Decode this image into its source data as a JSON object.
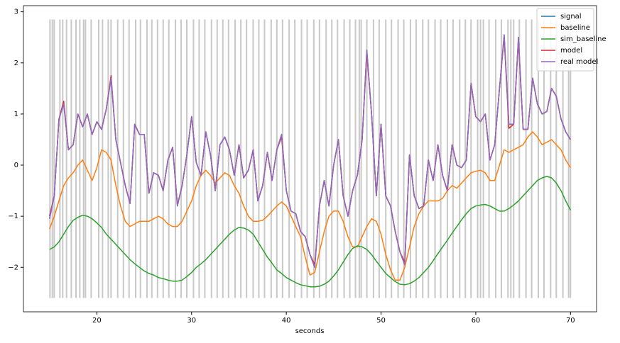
{
  "chart_data": {
    "type": "line",
    "xlabel": "seconds",
    "xlim": [
      12.25,
      72.75
    ],
    "ylim": [
      -2.87,
      3.12
    ],
    "xticks": [
      20,
      30,
      40,
      50,
      60,
      70
    ],
    "yticks": [
      {
        "value": -2,
        "label": "−2"
      },
      {
        "value": -1,
        "label": "−1"
      },
      0,
      1,
      2,
      3
    ],
    "legend": "upper right",
    "events": [
      15.05,
      15.3,
      15.5,
      16.1,
      16.4,
      16.8,
      17.3,
      17.8,
      18.2,
      18.6,
      18.8,
      19.4,
      20.2,
      20.6,
      21.2,
      21.5,
      22.2,
      22.8,
      23.4,
      24.1,
      24.6,
      25.3,
      25.8,
      26.4,
      27.0,
      27.6,
      28.3,
      28.9,
      29.5,
      30.2,
      30.8,
      31.4,
      32.1,
      32.7,
      33.3,
      33.9,
      34.6,
      35.2,
      35.8,
      36.5,
      37.1,
      37.7,
      38.4,
      39.0,
      39.6,
      40.3,
      40.9,
      41.6,
      42.2,
      42.9,
      43.5,
      44.2,
      44.8,
      45.4,
      46.1,
      46.7,
      47.3,
      47.7,
      47.9,
      48.5,
      49.2,
      49.8,
      50.5,
      51.1,
      51.8,
      52.4,
      53.1,
      53.7,
      54.4,
      55.0,
      55.7,
      56.3,
      57.0,
      57.6,
      58.3,
      58.9,
      59.5,
      60.2,
      60.5,
      60.8,
      61.4,
      62.1,
      62.7,
      63.4,
      63.7,
      64.0,
      64.6,
      65.3,
      65.9,
      66.6,
      67.2,
      67.9,
      68.5,
      69.2,
      69.8,
      70.0
    ],
    "event_span": [
      -2.6,
      2.85
    ],
    "event_color": "#c8c8c8",
    "x": [
      15,
      15.5,
      16,
      16.5,
      17,
      17.5,
      18,
      18.5,
      19,
      19.5,
      20,
      20.5,
      21,
      21.5,
      22,
      22.5,
      23,
      23.5,
      24,
      24.5,
      25,
      25.5,
      26,
      26.5,
      27,
      27.5,
      28,
      28.5,
      29,
      29.5,
      30,
      30.5,
      31,
      31.5,
      32,
      32.5,
      33,
      33.5,
      34,
      34.5,
      35,
      35.5,
      36,
      36.5,
      37,
      37.5,
      38,
      38.5,
      39,
      39.5,
      40,
      40.5,
      41,
      41.5,
      42,
      42.5,
      43,
      43.5,
      44,
      44.5,
      45,
      45.5,
      46,
      46.5,
      47,
      47.5,
      48,
      48.5,
      49,
      49.5,
      50,
      50.5,
      51,
      51.5,
      52,
      52.5,
      53,
      53.5,
      54,
      54.5,
      55,
      55.5,
      56,
      56.5,
      57,
      57.5,
      58,
      58.5,
      59,
      59.5,
      60,
      60.5,
      61,
      61.5,
      62,
      62.5,
      63,
      63.5,
      64,
      64.5,
      65,
      65.5,
      66,
      66.5,
      67,
      67.5,
      68,
      68.5,
      69,
      69.5,
      70
    ],
    "series": [
      {
        "name": "signal",
        "color": "#1f77b4",
        "values": [
          -1.05,
          -0.6,
          0.9,
          1.2,
          0.3,
          0.4,
          1.0,
          0.75,
          1.0,
          0.6,
          0.85,
          0.7,
          1.1,
          1.7,
          0.5,
          0.05,
          -0.4,
          -0.75,
          0.8,
          0.6,
          0.6,
          -0.55,
          -0.15,
          -0.2,
          -0.5,
          0.1,
          0.35,
          -0.8,
          -0.4,
          0.2,
          0.95,
          0.05,
          -0.2,
          0.65,
          0.2,
          -0.5,
          0.4,
          0.55,
          0.3,
          -0.2,
          0.4,
          -0.25,
          -0.1,
          0.3,
          -0.7,
          -0.4,
          0.25,
          -0.3,
          0.3,
          0.6,
          -0.5,
          -0.9,
          -0.95,
          -1.3,
          -1.4,
          -1.75,
          -2.0,
          -0.8,
          -0.3,
          -0.8,
          0.0,
          0.5,
          -0.6,
          -1.0,
          -0.5,
          -0.2,
          0.5,
          2.25,
          1.0,
          -0.6,
          0.8,
          -0.6,
          -0.8,
          -1.3,
          -1.7,
          -1.95,
          0.2,
          -0.6,
          -0.85,
          -0.8,
          0.1,
          -0.3,
          0.4,
          -0.2,
          -0.5,
          0.4,
          0.0,
          -0.05,
          0.1,
          1.6,
          0.95,
          0.85,
          1.0,
          0.1,
          0.4,
          1.5,
          2.55,
          0.8,
          0.8,
          2.5,
          0.7,
          0.7,
          1.7,
          1.2,
          1.0,
          1.05,
          1.5,
          1.35,
          0.9,
          0.65,
          0.5
        ]
      },
      {
        "name": "baseline",
        "color": "#ff7f0e",
        "values": [
          -1.25,
          -1.0,
          -0.7,
          -0.4,
          -0.25,
          -0.15,
          0.0,
          0.1,
          -0.1,
          -0.3,
          -0.05,
          0.3,
          0.25,
          0.1,
          -0.4,
          -0.8,
          -1.1,
          -1.2,
          -1.15,
          -1.1,
          -1.1,
          -1.1,
          -1.05,
          -1.0,
          -1.05,
          -1.15,
          -1.2,
          -1.2,
          -1.1,
          -0.9,
          -0.7,
          -0.4,
          -0.2,
          -0.1,
          -0.2,
          -0.35,
          -0.25,
          -0.15,
          -0.2,
          -0.4,
          -0.55,
          -0.8,
          -1.0,
          -1.1,
          -1.1,
          -1.08,
          -1.0,
          -0.9,
          -0.8,
          -0.72,
          -0.8,
          -1.0,
          -1.2,
          -1.4,
          -1.8,
          -2.15,
          -2.1,
          -1.7,
          -1.3,
          -1.0,
          -0.9,
          -0.9,
          -1.1,
          -1.4,
          -1.6,
          -1.6,
          -1.4,
          -1.2,
          -1.05,
          -1.1,
          -1.35,
          -1.75,
          -2.05,
          -2.25,
          -2.25,
          -2.0,
          -1.6,
          -1.2,
          -0.95,
          -0.8,
          -0.7,
          -0.7,
          -0.7,
          -0.65,
          -0.5,
          -0.4,
          -0.45,
          -0.35,
          -0.25,
          -0.15,
          -0.12,
          -0.1,
          -0.15,
          -0.3,
          -0.3,
          0.0,
          0.3,
          0.25,
          0.3,
          0.35,
          0.4,
          0.55,
          0.65,
          0.55,
          0.4,
          0.45,
          0.5,
          0.4,
          0.3,
          0.1,
          -0.05
        ]
      },
      {
        "name": "sim_baseline",
        "color": "#2ca02c",
        "values": [
          -1.65,
          -1.6,
          -1.5,
          -1.35,
          -1.2,
          -1.08,
          -1.02,
          -0.98,
          -1.0,
          -1.05,
          -1.13,
          -1.22,
          -1.35,
          -1.45,
          -1.55,
          -1.65,
          -1.75,
          -1.85,
          -1.93,
          -2.0,
          -2.07,
          -2.12,
          -2.15,
          -2.2,
          -2.22,
          -2.25,
          -2.27,
          -2.27,
          -2.25,
          -2.18,
          -2.1,
          -2.0,
          -1.93,
          -1.85,
          -1.75,
          -1.65,
          -1.55,
          -1.45,
          -1.35,
          -1.27,
          -1.22,
          -1.23,
          -1.27,
          -1.35,
          -1.5,
          -1.65,
          -1.8,
          -1.92,
          -2.05,
          -2.12,
          -2.2,
          -2.25,
          -2.3,
          -2.34,
          -2.36,
          -2.38,
          -2.38,
          -2.37,
          -2.33,
          -2.27,
          -2.17,
          -2.05,
          -1.9,
          -1.75,
          -1.63,
          -1.58,
          -1.6,
          -1.65,
          -1.75,
          -1.88,
          -2.0,
          -2.12,
          -2.2,
          -2.28,
          -2.33,
          -2.34,
          -2.32,
          -2.27,
          -2.2,
          -2.1,
          -2.0,
          -1.87,
          -1.73,
          -1.6,
          -1.47,
          -1.33,
          -1.2,
          -1.07,
          -0.95,
          -0.85,
          -0.8,
          -0.78,
          -0.77,
          -0.8,
          -0.85,
          -0.9,
          -0.9,
          -0.85,
          -0.78,
          -0.7,
          -0.6,
          -0.5,
          -0.4,
          -0.3,
          -0.25,
          -0.22,
          -0.25,
          -0.35,
          -0.5,
          -0.7,
          -0.88
        ]
      },
      {
        "name": "model",
        "color": "#d62728",
        "values": [
          -1.0,
          -0.6,
          0.9,
          1.25,
          0.3,
          0.4,
          1.0,
          0.75,
          1.0,
          0.6,
          0.85,
          0.7,
          1.1,
          1.75,
          0.5,
          0.05,
          -0.4,
          -0.75,
          0.8,
          0.6,
          0.6,
          -0.55,
          -0.15,
          -0.2,
          -0.5,
          0.1,
          0.35,
          -0.78,
          -0.4,
          0.2,
          0.95,
          0.05,
          -0.2,
          0.65,
          0.2,
          -0.5,
          0.4,
          0.55,
          0.3,
          -0.2,
          0.4,
          -0.25,
          -0.1,
          0.3,
          -0.7,
          -0.4,
          0.25,
          -0.3,
          0.3,
          0.55,
          -0.5,
          -0.9,
          -0.95,
          -1.3,
          -1.4,
          -1.75,
          -1.95,
          -0.8,
          -0.3,
          -0.8,
          0.0,
          0.5,
          -0.6,
          -1.0,
          -0.5,
          -0.2,
          0.5,
          2.2,
          1.0,
          -0.6,
          0.8,
          -0.6,
          -0.8,
          -1.3,
          -1.7,
          -1.9,
          0.2,
          -0.6,
          -0.85,
          -0.8,
          0.1,
          -0.3,
          0.4,
          -0.2,
          -0.5,
          0.4,
          0.0,
          -0.05,
          0.1,
          1.6,
          0.95,
          0.85,
          1.0,
          0.1,
          0.4,
          1.5,
          2.5,
          0.72,
          0.8,
          2.45,
          0.7,
          0.7,
          1.7,
          1.2,
          1.0,
          1.05,
          1.5,
          1.35,
          0.9,
          0.65,
          0.5
        ]
      },
      {
        "name": "real model",
        "color": "#9467bd",
        "values": [
          -1.05,
          -0.6,
          0.9,
          1.2,
          0.3,
          0.4,
          1.0,
          0.75,
          1.0,
          0.6,
          0.85,
          0.7,
          1.1,
          1.7,
          0.5,
          0.05,
          -0.4,
          -0.75,
          0.8,
          0.6,
          0.6,
          -0.55,
          -0.15,
          -0.2,
          -0.5,
          0.1,
          0.35,
          -0.8,
          -0.4,
          0.2,
          0.95,
          0.05,
          -0.2,
          0.65,
          0.2,
          -0.5,
          0.4,
          0.55,
          0.3,
          -0.2,
          0.4,
          -0.25,
          -0.1,
          0.3,
          -0.7,
          -0.4,
          0.25,
          -0.3,
          0.3,
          0.6,
          -0.5,
          -0.9,
          -0.95,
          -1.3,
          -1.4,
          -1.75,
          -2.0,
          -0.8,
          -0.3,
          -0.8,
          0.0,
          0.5,
          -0.6,
          -1.0,
          -0.5,
          -0.2,
          0.5,
          2.25,
          1.0,
          -0.6,
          0.8,
          -0.6,
          -0.8,
          -1.3,
          -1.7,
          -1.95,
          0.2,
          -0.6,
          -0.85,
          -0.8,
          0.1,
          -0.3,
          0.4,
          -0.2,
          -0.5,
          0.4,
          0.0,
          -0.05,
          0.1,
          1.6,
          0.95,
          0.85,
          1.0,
          0.1,
          0.4,
          1.5,
          2.55,
          0.8,
          0.8,
          2.5,
          0.7,
          0.7,
          1.7,
          1.2,
          1.0,
          1.05,
          1.5,
          1.35,
          0.9,
          0.65,
          0.5
        ]
      }
    ]
  }
}
